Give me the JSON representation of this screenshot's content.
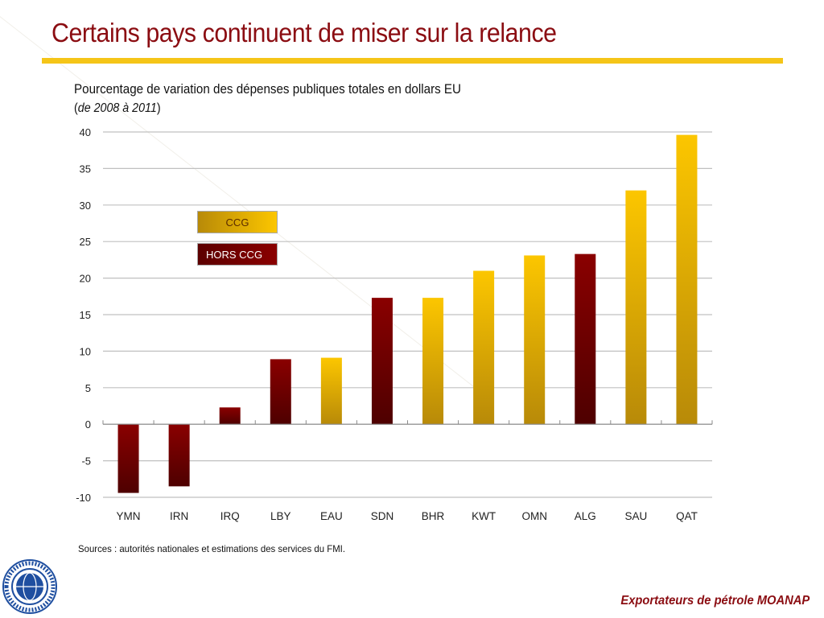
{
  "slide": {
    "title": "Certains pays continuent de miser sur la relance",
    "subtitle": "Pourcentage de variation des dépenses publiques totales  en dollars EU",
    "period_open": "(",
    "period_italic": "de 2008 à 2011",
    "period_close": ")",
    "sources": "Sources : autorités nationales et estimations des services du FMI.",
    "footer": "Exportateurs de pétrole MOANAP",
    "logo": "imf-logo-icon",
    "colors": {
      "title": "#8b0d12",
      "rule": "#f5c518",
      "ccg": "#fcc600",
      "hors_ccg": "#8a0000"
    }
  },
  "chart_data": {
    "type": "bar",
    "title": "Pourcentage de variation des dépenses publiques totales en dollars EU (de 2008 à 2011)",
    "xlabel": "",
    "ylabel": "",
    "ylim": [
      -10,
      40
    ],
    "yticks": [
      40,
      35,
      30,
      25,
      20,
      15,
      10,
      5,
      0,
      -5,
      -10
    ],
    "grid": true,
    "legend_placement": "top-left",
    "legend": [
      {
        "name": "CCG",
        "color": "#fcc600"
      },
      {
        "name": "HORS CCG",
        "color": "#8a0000"
      }
    ],
    "categories": [
      "YMN",
      "IRN",
      "IRQ",
      "LBY",
      "EAU",
      "SDN",
      "BHR",
      "KWT",
      "OMN",
      "ALG",
      "SAU",
      "QAT"
    ],
    "values": [
      -9.4,
      -8.5,
      2.3,
      8.9,
      9.1,
      17.3,
      17.3,
      21.0,
      23.1,
      23.3,
      32.0,
      39.6
    ],
    "groups": [
      "HORS CCG",
      "HORS CCG",
      "HORS CCG",
      "HORS CCG",
      "CCG",
      "HORS CCG",
      "CCG",
      "CCG",
      "CCG",
      "HORS CCG",
      "CCG",
      "CCG"
    ]
  }
}
